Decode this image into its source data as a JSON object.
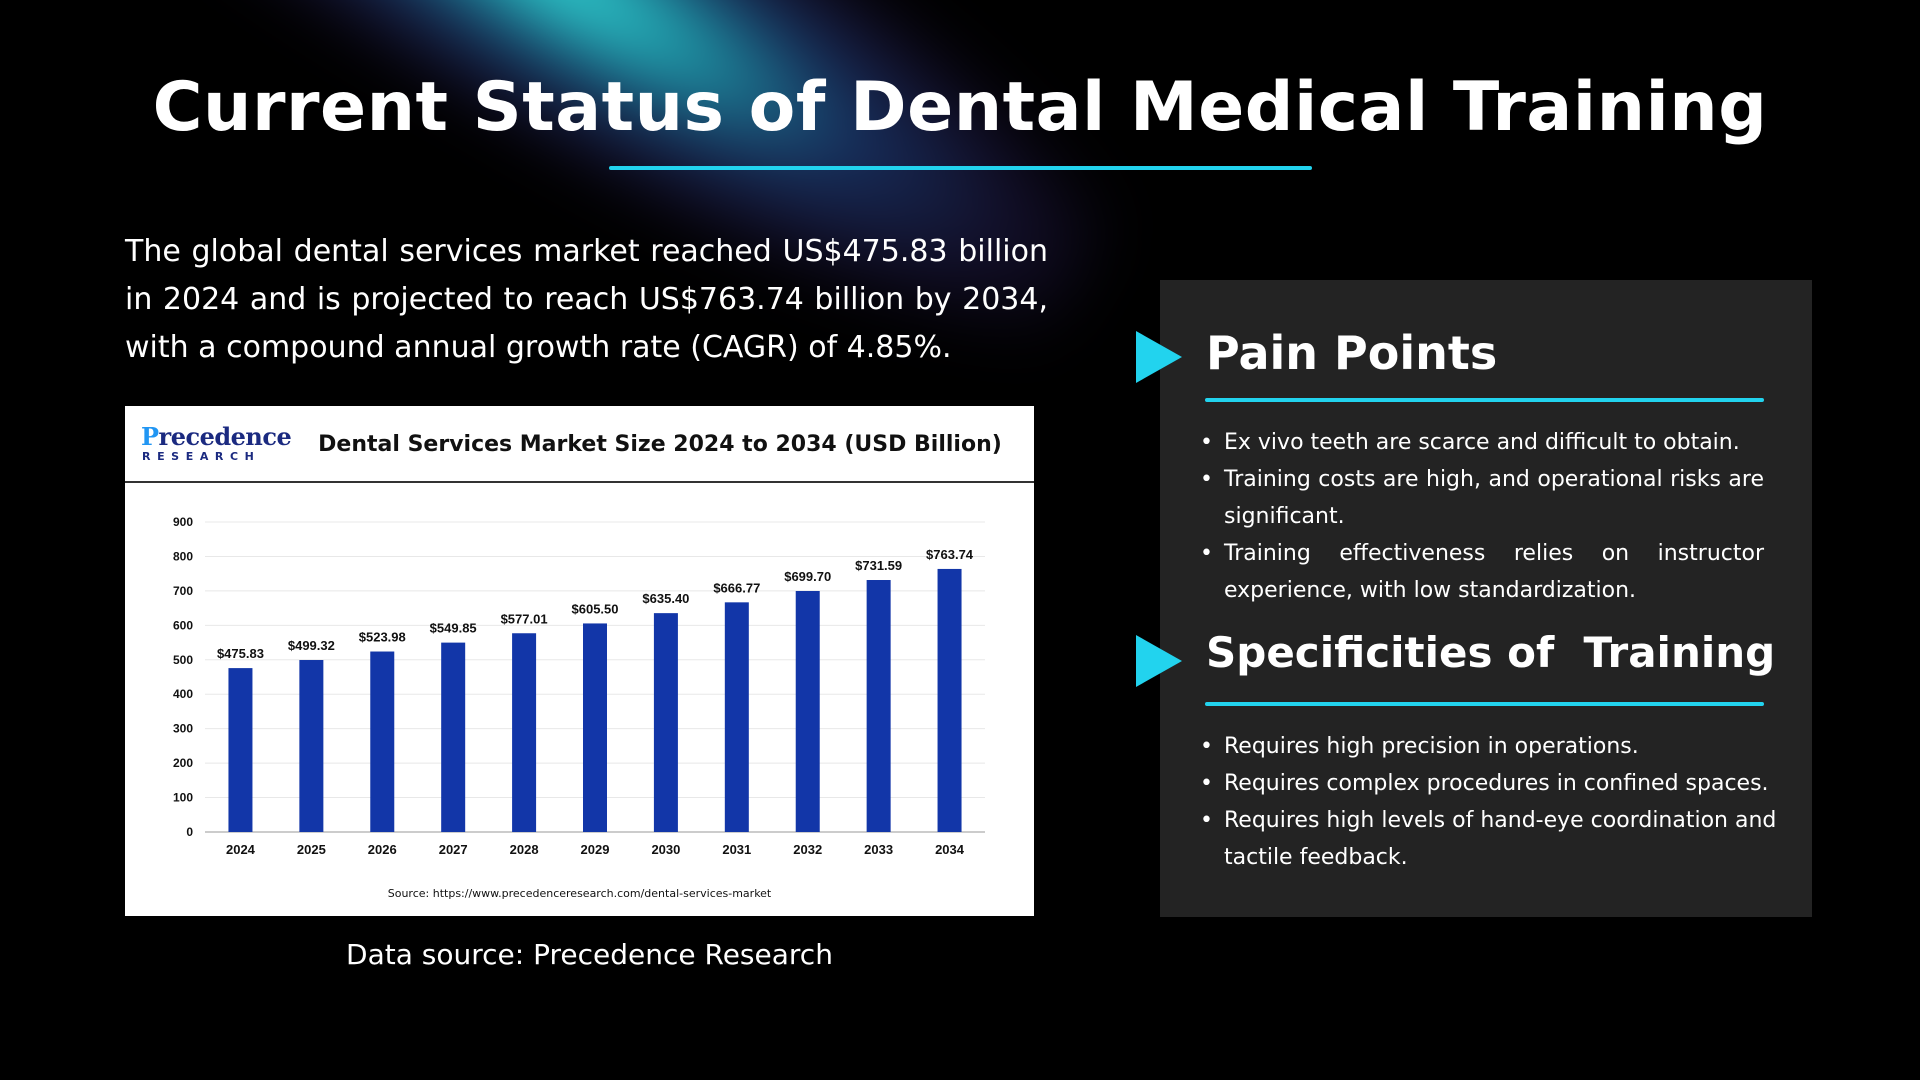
{
  "page": {
    "title": "Current Status of Dental Medical Training",
    "intro": "The global dental services market reached US$475.83 billion in 2024 and is projected to reach US$763.74 billion by 2034, with a compound annual growth rate (CAGR) of 4.85%.",
    "caption": "Data source: Precedence Research"
  },
  "chart_card": {
    "logo_main": "recedence",
    "logo_initial": "P",
    "logo_sub": "RESEARCH",
    "source_note": "Source: https://www.precedenceresearch.com/dental-services-market"
  },
  "chart_data": {
    "type": "bar",
    "title": "Dental Services Market Size 2024 to 2034 (USD Billion)",
    "categories": [
      "2024",
      "2025",
      "2026",
      "2027",
      "2028",
      "2029",
      "2030",
      "2031",
      "2032",
      "2033",
      "2034"
    ],
    "values": [
      475.83,
      499.32,
      523.98,
      549.85,
      577.01,
      605.5,
      635.4,
      666.77,
      699.7,
      731.59,
      763.74
    ],
    "value_labels": [
      "$475.83",
      "$499.32",
      "$523.98",
      "$549.85",
      "$577.01",
      "$605.50",
      "$635.40",
      "$666.77",
      "$699.70",
      "$731.59",
      "$763.74"
    ],
    "yticks": [
      0,
      100,
      200,
      300,
      400,
      500,
      600,
      700,
      800,
      900
    ],
    "ylim": [
      0,
      900
    ],
    "xlabel": "",
    "ylabel": "",
    "grid": true,
    "bar_color": "#1236a8"
  },
  "panel": {
    "pain_points": {
      "title": "Pain Points",
      "items": [
        "Ex vivo teeth are scarce and difficult to obtain.",
        "Training costs are high, and operational risks are significant.",
        "Training effectiveness relies on instructor experience, with low standardization."
      ]
    },
    "specificities": {
      "title": "Specificities of  Training",
      "items": [
        "Requires high precision in operations.",
        "Requires complex procedures in confined spaces.",
        "Requires high levels of hand-eye coordination and tactile feedback."
      ]
    }
  },
  "colors": {
    "accent": "#22d3ee",
    "panel_bg": "#232323",
    "background": "#000000"
  }
}
